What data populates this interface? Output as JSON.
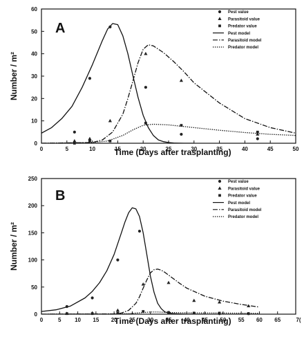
{
  "chart_data": [
    {
      "type": "line",
      "panel_label": "A",
      "xlabel": "Time (Days after trasplanting)",
      "ylabel": "Number / m²",
      "xlim": [
        0,
        50
      ],
      "ylim": [
        0,
        60
      ],
      "xticks": [
        0,
        5,
        10,
        15,
        20,
        25,
        30,
        35,
        40,
        45,
        50
      ],
      "yticks": [
        0,
        10,
        20,
        30,
        40,
        50,
        60
      ],
      "legend_position": "top-right",
      "grid": false,
      "points": [
        {
          "name": "Pest value",
          "marker": "circle",
          "x": [
            6.5,
            9.5,
            13.5,
            20.5,
            27.5,
            42.5
          ],
          "y": [
            5,
            29,
            52,
            25,
            4,
            2
          ]
        },
        {
          "name": "Parasitoid value",
          "marker": "triangle",
          "x": [
            6.5,
            9.5,
            13.5,
            20.5,
            27.5,
            42.5
          ],
          "y": [
            1,
            2,
            10,
            40,
            28,
            4
          ]
        },
        {
          "name": "Predator value",
          "marker": "square",
          "x": [
            6.5,
            9.5,
            13.5,
            20.5,
            27.5,
            42.5
          ],
          "y": [
            0,
            1,
            1,
            9,
            8,
            5
          ]
        }
      ],
      "lines": [
        {
          "name": "Pest model",
          "style": "solid",
          "x": [
            0,
            2,
            4,
            6,
            8,
            10,
            12,
            13,
            14,
            15,
            16,
            17,
            18,
            19,
            20,
            21,
            22,
            23,
            24,
            25,
            26,
            28,
            30
          ],
          "y": [
            4.5,
            7,
            11,
            16.5,
            25,
            35,
            46,
            51,
            53.5,
            53,
            48,
            40,
            30,
            20.5,
            12.5,
            7,
            3.5,
            1.5,
            0.7,
            0.3,
            0.1,
            0,
            0
          ]
        },
        {
          "name": "Parasitoid model",
          "style": "dashdot",
          "x": [
            0,
            10,
            12,
            14,
            16,
            17,
            18,
            19,
            20,
            21,
            22,
            24,
            26,
            28,
            30,
            35,
            40,
            45,
            50
          ],
          "y": [
            0,
            0.3,
            1.5,
            5,
            13,
            20,
            28,
            36,
            42,
            44,
            43.5,
            40.5,
            36.5,
            32,
            27,
            18,
            11,
            7,
            4.5
          ]
        },
        {
          "name": "Predator model",
          "style": "dotted",
          "x": [
            0,
            10,
            13,
            16,
            18,
            20,
            22,
            25,
            30,
            35,
            40,
            45,
            50
          ],
          "y": [
            0,
            0.3,
            1,
            3.5,
            6,
            8,
            8.5,
            8.2,
            7,
            5.8,
            4.8,
            4,
            3.5
          ]
        }
      ]
    },
    {
      "type": "line",
      "panel_label": "B",
      "xlabel": "Time (Days after trasplanting)",
      "ylabel": "Number / m²",
      "xlim": [
        0,
        70
      ],
      "ylim": [
        0,
        250
      ],
      "xticks": [
        0,
        5,
        10,
        15,
        20,
        25,
        30,
        35,
        40,
        45,
        50,
        55,
        60,
        65
      ],
      "xtick_clipped": "7(",
      "yticks": [
        0,
        50,
        100,
        150,
        200,
        250
      ],
      "legend_position": "top-right",
      "grid": false,
      "points": [
        {
          "name": "Pest value",
          "marker": "circle",
          "x": [
            7,
            14,
            21,
            27,
            35,
            42,
            49,
            57
          ],
          "y": [
            14,
            30,
            100,
            153,
            3,
            2,
            1,
            1
          ]
        },
        {
          "name": "Parasitoid value",
          "marker": "triangle",
          "x": [
            7,
            14,
            21,
            28,
            35,
            42,
            49,
            57
          ],
          "y": [
            1,
            2,
            7,
            55,
            58,
            25,
            22,
            15
          ]
        },
        {
          "name": "Predator value",
          "marker": "square",
          "x": [
            7,
            14,
            21,
            28,
            35,
            42,
            49,
            57
          ],
          "y": [
            1,
            1,
            2,
            5,
            3,
            2,
            2,
            1
          ]
        }
      ],
      "lines": [
        {
          "name": "Pest model",
          "style": "solid",
          "x": [
            0,
            4,
            8,
            12,
            14,
            16,
            18,
            20,
            22,
            23,
            24,
            25,
            26,
            27,
            28,
            29,
            30,
            31,
            32,
            33,
            34,
            36,
            40,
            45
          ],
          "y": [
            5,
            8,
            15,
            30,
            42,
            58,
            80,
            110,
            150,
            170,
            187,
            196,
            194,
            180,
            150,
            110,
            70,
            40,
            20,
            10,
            4,
            1,
            0,
            0
          ]
        },
        {
          "name": "Parasitoid model",
          "style": "dashdot",
          "x": [
            0,
            20,
            22,
            24,
            26,
            27,
            28,
            29,
            30,
            31,
            32,
            33,
            34,
            36,
            38,
            40,
            45,
            50,
            55,
            60
          ],
          "y": [
            0,
            0.5,
            2,
            7,
            20,
            32,
            48,
            63,
            76,
            82,
            83,
            81,
            77,
            67,
            57,
            48,
            33,
            24,
            18,
            13
          ]
        },
        {
          "name": "Predator model",
          "style": "dotted",
          "x": [
            0,
            20,
            24,
            26,
            28,
            30,
            32,
            34,
            36,
            40,
            50,
            60
          ],
          "y": [
            0,
            0.5,
            1,
            2,
            3,
            4,
            4,
            3.5,
            3,
            2.5,
            2,
            1.5
          ]
        }
      ]
    }
  ]
}
